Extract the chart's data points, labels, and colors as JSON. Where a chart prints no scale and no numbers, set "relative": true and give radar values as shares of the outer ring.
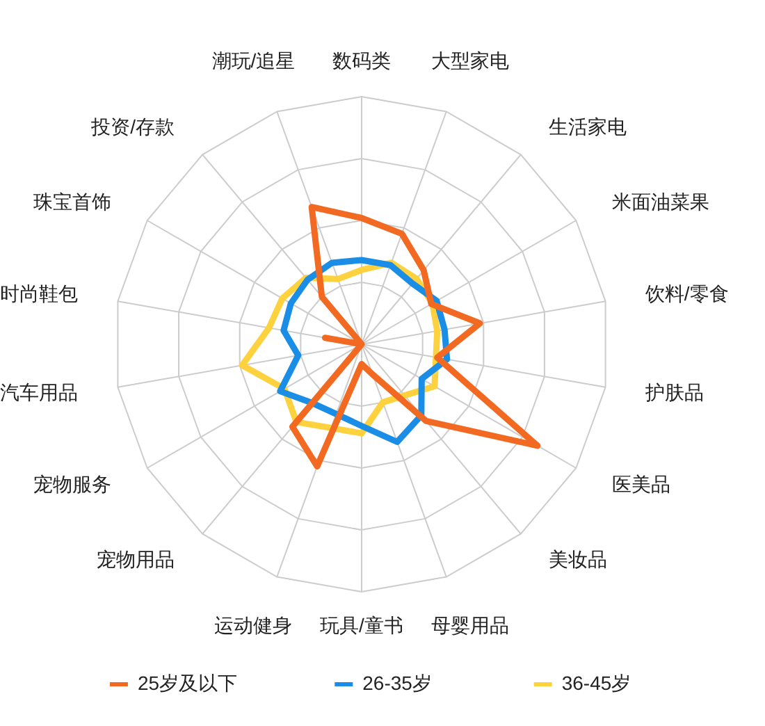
{
  "chart_data": {
    "type": "radar",
    "relative": true,
    "categories": [
      "数码类",
      "大型家电",
      "生活家电",
      "米面油菜果",
      "饮料/零食",
      "护肤品",
      "医美品",
      "美妆品",
      "母婴用品",
      "玩具/童书",
      "运动健身",
      "宠物用品",
      "宠物服务",
      "汽车用品",
      "时尚鞋包",
      "珠宝首饰",
      "投资/存款",
      "潮玩/追星"
    ],
    "series": [
      {
        "name": "25岁及以下",
        "color": "#f26a21",
        "values": [
          0.51,
          0.475,
          0.39,
          0.325,
          0.485,
          0.31,
          0.82,
          0.405,
          0.13,
          0.08,
          0.525,
          0.435,
          0.0,
          0.0,
          0.15,
          0.0,
          0.25,
          0.59
        ]
      },
      {
        "name": "26-35岁",
        "color": "#1a8ee6",
        "values": [
          0.34,
          0.34,
          0.32,
          0.35,
          0.34,
          0.35,
          0.28,
          0.375,
          0.42,
          0.33,
          0.3,
          0.31,
          0.38,
          0.26,
          0.32,
          0.33,
          0.34,
          0.35
        ]
      },
      {
        "name": "36-45岁",
        "color": "#fdd23e",
        "values": [
          0.3,
          0.35,
          0.345,
          0.33,
          0.31,
          0.305,
          0.34,
          0.27,
          0.25,
          0.36,
          0.36,
          0.41,
          0.36,
          0.49,
          0.38,
          0.37,
          0.35,
          0.28
        ]
      }
    ],
    "grid": true,
    "legend": "bottom"
  }
}
